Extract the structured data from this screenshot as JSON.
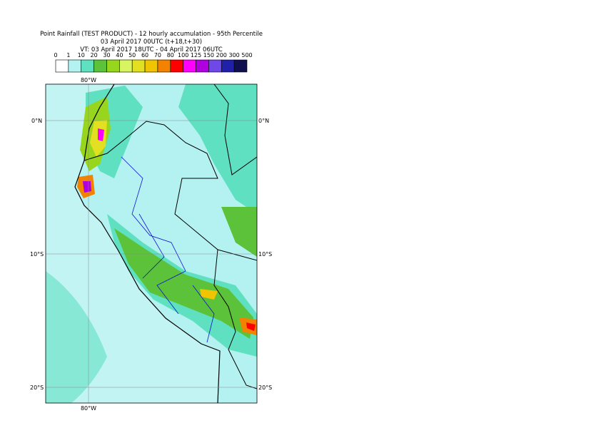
{
  "header": {
    "title": "Point Rainfall (TEST PRODUCT) - 12 hourly accumulation - 95th Percentile",
    "run": "03 April 2017 00UTC (t+18,t+30)",
    "valid": "VT: 03 April 2017 18UTC - 04 April 2017 06UTC"
  },
  "legend": {
    "labels": [
      0,
      1,
      10,
      20,
      30,
      40,
      50,
      60,
      70,
      80,
      100,
      125,
      150,
      200,
      300,
      500
    ],
    "colors": [
      "#ffffff",
      "#b4f2f2",
      "#5fe0c0",
      "#5cc23a",
      "#98d61e",
      "#d8f460",
      "#e2e020",
      "#f0c400",
      "#f28200",
      "#ff0000",
      "#ff00ff",
      "#b000e0",
      "#7048e8",
      "#2020a8",
      "#101050"
    ]
  },
  "map": {
    "lat_labels": [
      "0°N",
      "10°S",
      "20°S"
    ],
    "lon_labels": [
      "80°W"
    ]
  }
}
